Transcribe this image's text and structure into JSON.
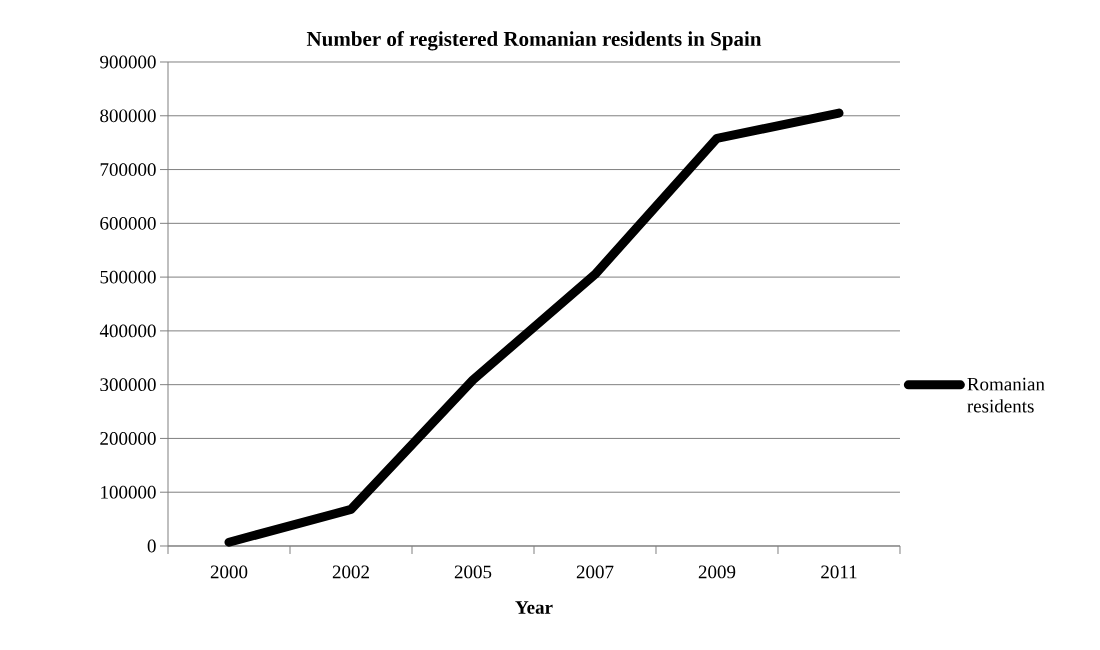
{
  "chart_data": {
    "type": "line",
    "title": "Number of registered Romanian residents in Spain",
    "xlabel": "Year",
    "categories": [
      "2000",
      "2002",
      "2005",
      "2007",
      "2009",
      "2011"
    ],
    "series": [
      {
        "name": "Romanian residents",
        "color": "#000000",
        "values": [
          7000,
          68000,
          309000,
          505000,
          758000,
          805000
        ]
      }
    ],
    "ylim": [
      0,
      900000
    ],
    "yticks": [
      0,
      100000,
      200000,
      300000,
      400000,
      500000,
      600000,
      700000,
      800000,
      900000
    ],
    "grid": "y",
    "legend": "right",
    "marker": "none",
    "line_style": "solid"
  }
}
